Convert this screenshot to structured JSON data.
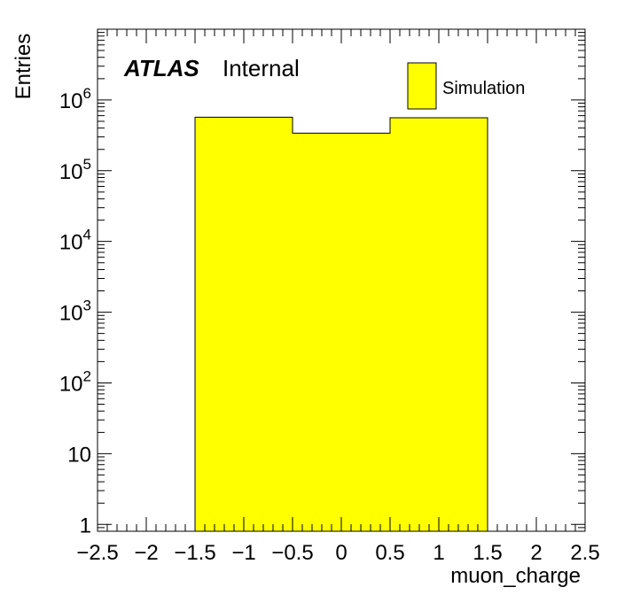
{
  "chart_data": {
    "type": "bar",
    "xlabel": "muon_charge",
    "ylabel": "Entries",
    "xlim": [
      -2.5,
      2.5
    ],
    "ylim": [
      0.8,
      10000000
    ],
    "log_y": true,
    "grid": false,
    "legend_placement": "top-right",
    "x_ticks": [
      "−2.5",
      "−2",
      "−1.5",
      "−1",
      "−0.5",
      "0",
      "0.5",
      "1",
      "1.5",
      "2",
      "2.5"
    ],
    "x_tick_values": [
      -2.5,
      -2,
      -1.5,
      -1,
      -0.5,
      0,
      0.5,
      1,
      1.5,
      2,
      2.5
    ],
    "y_ticks": [
      {
        "value": 1,
        "base": "1",
        "exp": ""
      },
      {
        "value": 10,
        "base": "10",
        "exp": ""
      },
      {
        "value": 100,
        "base": "10",
        "exp": "2"
      },
      {
        "value": 1000,
        "base": "10",
        "exp": "3"
      },
      {
        "value": 10000,
        "base": "10",
        "exp": "4"
      },
      {
        "value": 100000,
        "base": "10",
        "exp": "5"
      },
      {
        "value": 1000000,
        "base": "10",
        "exp": "6"
      }
    ],
    "bins": [
      {
        "low": -1.5,
        "high": -0.5,
        "value": 570000
      },
      {
        "low": -0.5,
        "high": 0.5,
        "value": 340000
      },
      {
        "low": 0.5,
        "high": 1.5,
        "value": 560000
      }
    ],
    "series": [
      {
        "name": "Simulation",
        "color": "#ffff00"
      }
    ],
    "annotations": {
      "atlas": "ATLAS",
      "status": "Internal"
    }
  }
}
